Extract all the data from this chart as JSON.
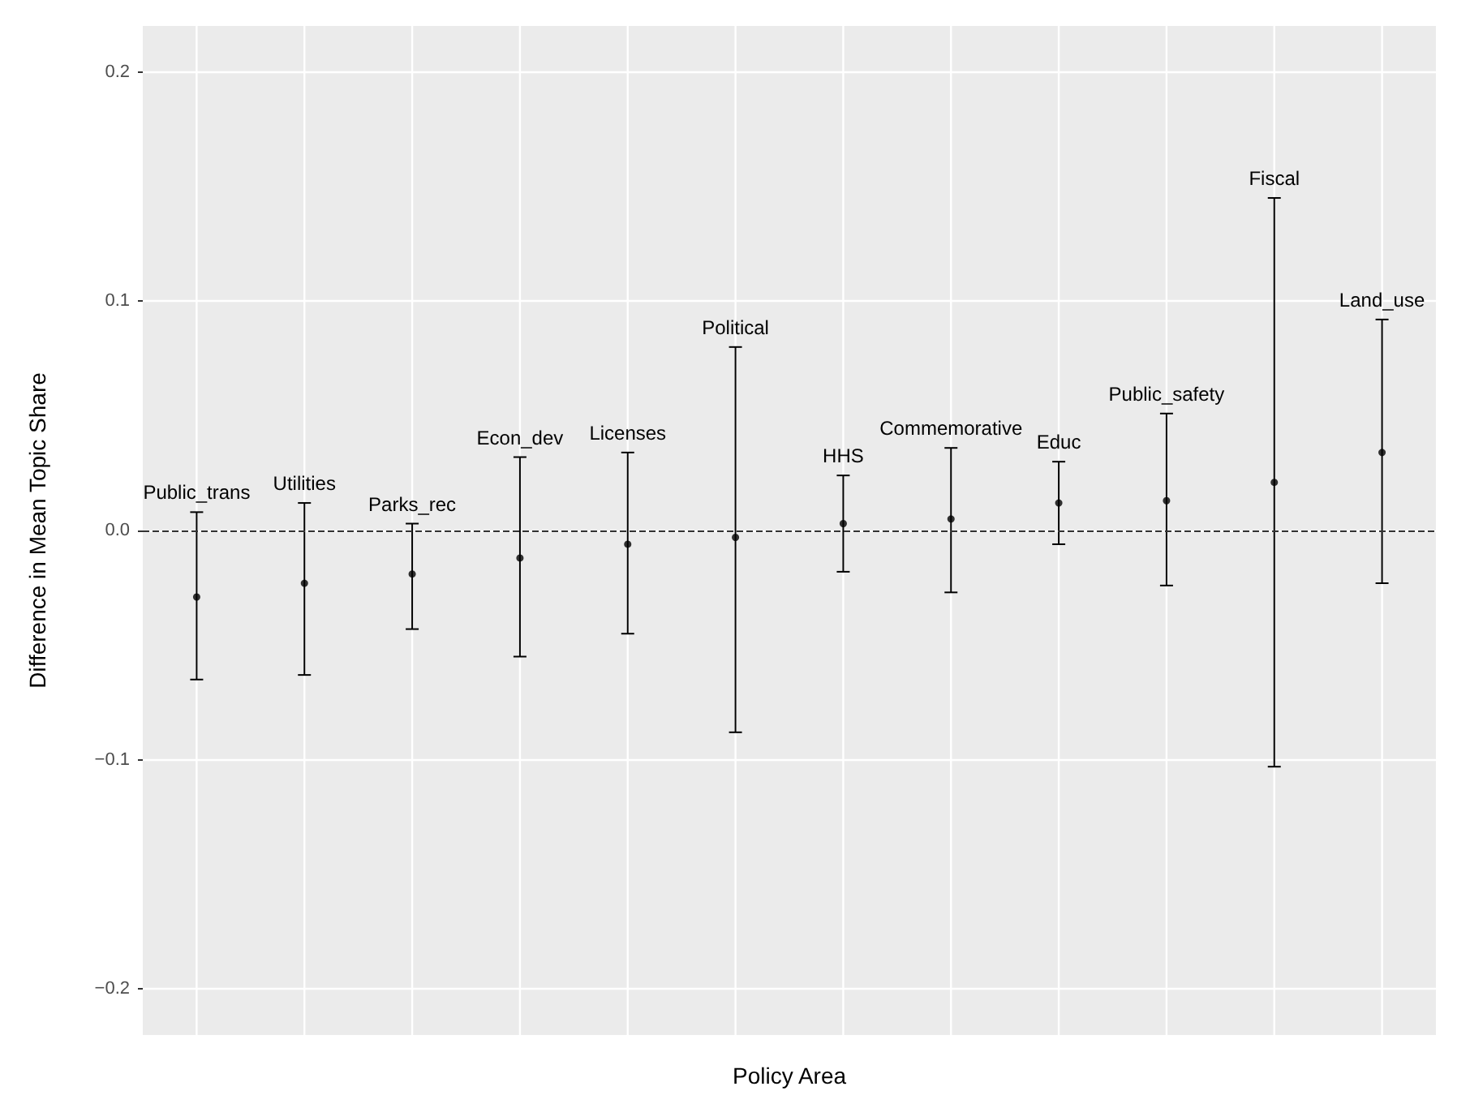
{
  "chart_data": {
    "type": "scatter",
    "xlabel": "Policy Area",
    "ylabel": "Difference in Mean Topic Share",
    "categories": [
      "Public_trans",
      "Utilities",
      "Parks_rec",
      "Econ_dev",
      "Licenses",
      "Political",
      "HHS",
      "Commemorative",
      "Educ",
      "Public_safety",
      "Fiscal",
      "Land_use"
    ],
    "values": [
      -0.029,
      -0.023,
      -0.019,
      -0.012,
      -0.006,
      -0.003,
      0.003,
      0.005,
      0.012,
      0.013,
      0.021,
      0.034
    ],
    "errors": [
      [
        -0.065,
        0.008
      ],
      [
        -0.063,
        0.012
      ],
      [
        -0.043,
        0.003
      ],
      [
        -0.055,
        0.032
      ],
      [
        -0.045,
        0.034
      ],
      [
        -0.088,
        0.08
      ],
      [
        -0.018,
        0.024
      ],
      [
        -0.027,
        0.036
      ],
      [
        -0.006,
        0.03
      ],
      [
        -0.024,
        0.051
      ],
      [
        -0.103,
        0.145
      ],
      [
        -0.023,
        0.092
      ]
    ],
    "color": "#000000",
    "marker": "circle",
    "ylim": [
      -0.22,
      0.22
    ],
    "yticks": [
      {
        "value": -0.2,
        "label": "−0.2"
      },
      {
        "value": -0.1,
        "label": "−0.1"
      },
      {
        "value": 0,
        "label": "0.0"
      },
      0.1,
      0.2
    ],
    "ref_lines": [
      {
        "axis": "y",
        "value": 0,
        "line_style": "dashed",
        "color": "#333333"
      }
    ],
    "grid": true,
    "tick_labels": "y"
  }
}
